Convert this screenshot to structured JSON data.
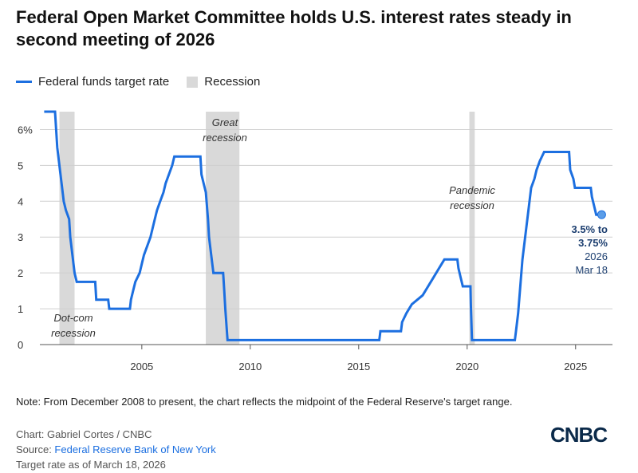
{
  "header": {
    "title": "Federal Open Market Committee holds U.S. interest rates steady in second meeting of 2026"
  },
  "legend": {
    "series_label": "Federal funds target rate",
    "recession_label": "Recession"
  },
  "chart_data": {
    "type": "line",
    "series": [
      {
        "name": "Federal funds target rate",
        "color": "#1c6fe0",
        "points": [
          [
            2000.5,
            6.5
          ],
          [
            2001.0,
            6.5
          ],
          [
            2001.05,
            6.0
          ],
          [
            2001.1,
            5.5
          ],
          [
            2001.2,
            5.0
          ],
          [
            2001.3,
            4.5
          ],
          [
            2001.4,
            4.0
          ],
          [
            2001.5,
            3.75
          ],
          [
            2001.65,
            3.5
          ],
          [
            2001.7,
            3.0
          ],
          [
            2001.8,
            2.5
          ],
          [
            2001.9,
            2.0
          ],
          [
            2002.0,
            1.75
          ],
          [
            2002.85,
            1.75
          ],
          [
            2002.9,
            1.25
          ],
          [
            2003.45,
            1.25
          ],
          [
            2003.5,
            1.0
          ],
          [
            2004.45,
            1.0
          ],
          [
            2004.5,
            1.25
          ],
          [
            2004.6,
            1.5
          ],
          [
            2004.7,
            1.75
          ],
          [
            2004.9,
            2.0
          ],
          [
            2005.0,
            2.25
          ],
          [
            2005.1,
            2.5
          ],
          [
            2005.25,
            2.75
          ],
          [
            2005.4,
            3.0
          ],
          [
            2005.5,
            3.25
          ],
          [
            2005.6,
            3.5
          ],
          [
            2005.7,
            3.75
          ],
          [
            2005.85,
            4.0
          ],
          [
            2006.0,
            4.25
          ],
          [
            2006.1,
            4.5
          ],
          [
            2006.25,
            4.75
          ],
          [
            2006.4,
            5.0
          ],
          [
            2006.5,
            5.25
          ],
          [
            2007.7,
            5.25
          ],
          [
            2007.75,
            4.75
          ],
          [
            2007.85,
            4.5
          ],
          [
            2007.95,
            4.25
          ],
          [
            2008.05,
            3.5
          ],
          [
            2008.1,
            3.0
          ],
          [
            2008.25,
            2.25
          ],
          [
            2008.3,
            2.0
          ],
          [
            2008.75,
            2.0
          ],
          [
            2008.8,
            1.5
          ],
          [
            2008.85,
            1.0
          ],
          [
            2008.95,
            0.125
          ],
          [
            2015.95,
            0.125
          ],
          [
            2016.0,
            0.375
          ],
          [
            2016.95,
            0.375
          ],
          [
            2017.0,
            0.625
          ],
          [
            2017.2,
            0.875
          ],
          [
            2017.45,
            1.125
          ],
          [
            2017.95,
            1.375
          ],
          [
            2018.2,
            1.625
          ],
          [
            2018.45,
            1.875
          ],
          [
            2018.7,
            2.125
          ],
          [
            2018.95,
            2.375
          ],
          [
            2019.55,
            2.375
          ],
          [
            2019.6,
            2.125
          ],
          [
            2019.7,
            1.875
          ],
          [
            2019.8,
            1.625
          ],
          [
            2020.15,
            1.625
          ],
          [
            2020.17,
            1.125
          ],
          [
            2020.22,
            0.125
          ],
          [
            2022.2,
            0.125
          ],
          [
            2022.25,
            0.375
          ],
          [
            2022.35,
            0.875
          ],
          [
            2022.45,
            1.625
          ],
          [
            2022.55,
            2.375
          ],
          [
            2022.7,
            3.125
          ],
          [
            2022.85,
            3.875
          ],
          [
            2022.95,
            4.375
          ],
          [
            2023.1,
            4.625
          ],
          [
            2023.2,
            4.875
          ],
          [
            2023.35,
            5.125
          ],
          [
            2023.55,
            5.375
          ],
          [
            2024.7,
            5.375
          ],
          [
            2024.75,
            4.875
          ],
          [
            2024.9,
            4.625
          ],
          [
            2024.97,
            4.375
          ],
          [
            2025.7,
            4.375
          ],
          [
            2025.75,
            4.125
          ],
          [
            2025.85,
            3.875
          ],
          [
            2025.95,
            3.625
          ],
          [
            2026.2,
            3.625
          ]
        ]
      }
    ],
    "recessions": [
      {
        "start": 2001.2,
        "end": 2001.9,
        "label": [
          "Dot-com",
          "recession"
        ]
      },
      {
        "start": 2007.95,
        "end": 2009.5,
        "label": [
          "Great",
          "recession"
        ]
      },
      {
        "start": 2020.1,
        "end": 2020.35,
        "label": [
          "Pandemic",
          "recession"
        ]
      }
    ],
    "x_ticks": [
      2005,
      2010,
      2015,
      2020,
      2025
    ],
    "y_ticks": [
      {
        "value": 0,
        "label": "0"
      },
      {
        "value": 1,
        "label": "1"
      },
      {
        "value": 2,
        "label": "2"
      },
      {
        "value": 3,
        "label": "3"
      },
      {
        "value": 4,
        "label": "4"
      },
      {
        "value": 5,
        "label": "5"
      },
      {
        "value": 6,
        "label": "6%"
      }
    ],
    "xlim": [
      2000.3,
      2026.7
    ],
    "ylim": [
      0,
      6.5
    ],
    "grid": true,
    "end_label": {
      "lines": [
        "3.5% to",
        "3.75%",
        "2026",
        "Mar 18"
      ],
      "point": [
        2026.2,
        3.625
      ]
    }
  },
  "footer": {
    "note": "Note: From December 2008 to present, the chart reflects the midpoint of the Federal Reserve's target range.",
    "credit": "Chart: Gabriel Cortes / CNBC",
    "source_prefix": "Source: ",
    "source_link": "Federal Reserve Bank of New York",
    "as_of": "Target rate as of March 18, 2026",
    "logo": "CNBC"
  }
}
